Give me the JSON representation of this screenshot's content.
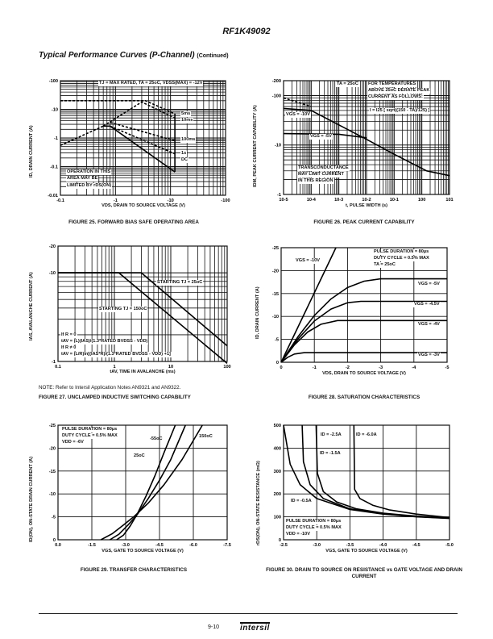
{
  "header": {
    "part_number": "RF1K49092"
  },
  "section": {
    "title": "Typical Performance Curves (P-Channel)",
    "suffix": "(Continued)"
  },
  "note": "NOTE:  Refer to Intersil Application Notes AN9321 and AN9322.",
  "footer": {
    "page": "9-10",
    "logo": "intersil"
  },
  "chart_data": [
    {
      "type": "line",
      "title": "FIGURE 25.  FORWARD BIAS SAFE OPERATING AREA",
      "xlabel": "VDS, DRAIN TO SOURCE VOLTAGE (V)",
      "ylabel": "ID, DRAIN CURRENT (A)",
      "xscale": "log",
      "yscale": "log",
      "xlim": [
        -0.1,
        -100
      ],
      "ylim": [
        -0.01,
        -100
      ],
      "xticks": [
        {
          "v": -0.1,
          "label": "-0.1"
        },
        {
          "v": -1,
          "label": "-1"
        },
        {
          "v": -10,
          "label": "-10"
        },
        {
          "v": -100,
          "label": "-100"
        }
      ],
      "yticks": [
        {
          "v": -0.01,
          "label": "-0.01"
        },
        {
          "v": -0.1,
          "label": "-0.1"
        },
        {
          "v": -1,
          "label": "-1"
        },
        {
          "v": -10,
          "label": "-10"
        },
        {
          "v": -100,
          "label": "-100"
        }
      ],
      "annotations": [
        "TJ = MAX RATED, TA = 25oC, VDSS(MAX) = -12V",
        "5ms",
        "10ms",
        "100ms",
        "1s",
        "DC",
        "OPERATION IN THIS",
        "AREA MAY BE",
        "LIMITED BY rDS(ON)"
      ],
      "series": [
        {
          "name": "rDS(ON) limit",
          "style": "dashed",
          "x": [
            -0.1,
            -0.6
          ],
          "y": [
            -0.55,
            -2.6
          ]
        },
        {
          "name": "5ms",
          "style": "dashed",
          "x": [
            -0.1,
            -3.5,
            -12
          ],
          "y": [
            -20,
            -20,
            -7
          ]
        },
        {
          "name": "10ms",
          "style": "dashed",
          "x": [
            -0.6,
            -3,
            -12
          ],
          "y": [
            -2.6,
            -18,
            -5
          ]
        },
        {
          "name": "100ms",
          "style": "dashed",
          "x": [
            -0.8,
            -12
          ],
          "y": [
            -3.5,
            -0.8
          ]
        },
        {
          "name": "1s",
          "style": "dashed",
          "x": [
            -0.8,
            -12
          ],
          "y": [
            -2.6,
            -0.28
          ]
        },
        {
          "name": "DC",
          "style": "solid",
          "x": [
            -0.6,
            -0.8,
            -12
          ],
          "y": [
            -2.6,
            -2.6,
            -0.065
          ]
        },
        {
          "name": "VDSS limit",
          "style": "solid",
          "x": [
            -12,
            -12
          ],
          "y": [
            -0.065,
            -7
          ]
        }
      ]
    },
    {
      "type": "line",
      "title": "FIGURE 26.  PEAK CURRENT CAPABILITY",
      "xlabel": "t, PULSE WIDTH (s)",
      "ylabel": "IDM, PEAK CURRENT CAPABILITY (A)",
      "xscale": "log",
      "yscale": "log",
      "xlim": [
        1e-05,
        10
      ],
      "ylim": [
        -1,
        -200
      ],
      "xticks": [
        {
          "v": 1e-05,
          "label": "10-5"
        },
        {
          "v": 0.0001,
          "label": "10-4"
        },
        {
          "v": 0.001,
          "label": "10-3"
        },
        {
          "v": 0.01,
          "label": "10-2"
        },
        {
          "v": 0.1,
          "label": "10-1"
        },
        {
          "v": 1,
          "label": "100"
        },
        {
          "v": 10,
          "label": "101"
        }
      ],
      "yticks": [
        {
          "v": -1,
          "label": "-1"
        },
        {
          "v": -10,
          "label": "-10"
        },
        {
          "v": -100,
          "label": "-100"
        },
        {
          "v": -200,
          "label": "-200"
        }
      ],
      "annotations": [
        "TA = 25oC",
        "FOR TEMPERATURES",
        "ABOVE 25oC DERATE PEAK",
        "CURRENT AS FOLLOWS:",
        "I = I25 [ sqrt((150 - TA)/125) ]",
        "VGS = -10V",
        "VGS = -5V",
        "TRANSCONDUCTANCE",
        "MAY LIMIT CURRENT",
        "IN THIS REGION"
      ],
      "series": [
        {
          "name": "VGS = -10V",
          "style": "solid",
          "x": [
            1e-05,
            0.0001,
            0.01,
            0.1,
            1.5,
            10
          ],
          "y": [
            -55,
            -50,
            -13,
            -6.5,
            -3,
            -2.4
          ]
        },
        {
          "name": "VGS = -10V limit",
          "style": "dashed",
          "x": [
            1e-05,
            0.0001
          ],
          "y": [
            -90,
            -60
          ]
        },
        {
          "name": "VGS = -5V",
          "style": "solid",
          "x": [
            1e-05,
            0.001,
            0.01
          ],
          "y": [
            -17,
            -16.5,
            -14
          ]
        }
      ]
    },
    {
      "type": "line",
      "title": "FIGURE 27.  UNCLAMPED INDUCTIVE SWITCHING CAPABILITY",
      "xlabel": "tAV, TIME IN AVALANCHE (ms)",
      "ylabel": "IAS, AVALANCHE CURRENT (A)",
      "xscale": "log",
      "yscale": "log",
      "xlim": [
        0.1,
        100
      ],
      "ylim": [
        -1,
        -20
      ],
      "xticks": [
        {
          "v": 0.1,
          "label": "0.1"
        },
        {
          "v": 1,
          "label": "1"
        },
        {
          "v": 10,
          "label": "10"
        },
        {
          "v": 100,
          "label": "100"
        }
      ],
      "yticks": [
        {
          "v": -1,
          "label": "-1"
        },
        {
          "v": -10,
          "label": "-10"
        },
        {
          "v": -20,
          "label": "-20"
        }
      ],
      "annotations": [
        "STARTING TJ = 25oC",
        "STARTING TJ = 150oC",
        "If R = 0",
        "tAV = (L)(IAS)/(1.3*RATED BVDSS - VDD)",
        "If R ≠ 0",
        "tAV = (L/R)ln[(IAS*R)/(1.3*RATED BVDSS - VDD) +1]"
      ],
      "series": [
        {
          "name": "STARTING TJ = 25oC",
          "style": "solid",
          "x": [
            0.1,
            3,
            100
          ],
          "y": [
            -10,
            -10,
            -1.5
          ]
        },
        {
          "name": "STARTING TJ = 150oC",
          "style": "solid",
          "x": [
            0.1,
            1.2,
            100
          ],
          "y": [
            -10,
            -10,
            -0.95
          ]
        }
      ]
    },
    {
      "type": "line",
      "title": "FIGURE 28.  SATURATION CHARACTERISTICS",
      "xlabel": "VDS, DRAIN TO SOURCE VOLTAGE (V)",
      "ylabel": "ID, DRAIN CURRENT (A)",
      "xscale": "linear",
      "yscale": "linear",
      "xlim": [
        0,
        -5
      ],
      "ylim": [
        0,
        -25
      ],
      "xticks": [
        {
          "v": 0,
          "label": "0"
        },
        {
          "v": -1,
          "label": "-1"
        },
        {
          "v": -2,
          "label": "-2"
        },
        {
          "v": -3,
          "label": "-3"
        },
        {
          "v": -4,
          "label": "-4"
        },
        {
          "v": -5,
          "label": "-5"
        }
      ],
      "yticks": [
        {
          "v": 0,
          "label": "0"
        },
        {
          "v": -5,
          "label": "-5"
        },
        {
          "v": -10,
          "label": "-10"
        },
        {
          "v": -15,
          "label": "-15"
        },
        {
          "v": -20,
          "label": "-20"
        },
        {
          "v": -25,
          "label": "-25"
        }
      ],
      "annotations": [
        "PULSE DURATION = 80µs",
        "DUTY CYCLE = 0.5% MAX",
        "TA = 25oC",
        "VGS = -10V",
        "VGS = -5V",
        "VGS = -4.5V",
        "VGS = -4V",
        "VGS = -3V"
      ],
      "series": [
        {
          "name": "VGS = -10V",
          "style": "solid",
          "x": [
            0,
            -1.65
          ],
          "y": [
            0,
            -25
          ]
        },
        {
          "name": "VGS = -5V",
          "style": "solid",
          "x": [
            0,
            -0.5,
            -1,
            -1.5,
            -2,
            -2.5,
            -3,
            -5
          ],
          "y": [
            0,
            -5.5,
            -10.2,
            -13.8,
            -16.3,
            -17.7,
            -18.2,
            -18.2
          ]
        },
        {
          "name": "VGS = -4.5V",
          "style": "solid",
          "x": [
            0,
            -0.5,
            -1,
            -1.5,
            -2,
            -2.4,
            -5
          ],
          "y": [
            0,
            -5,
            -9,
            -11.6,
            -13,
            -13.3,
            -13.3
          ]
        },
        {
          "name": "VGS = -4V",
          "style": "solid",
          "x": [
            0,
            -0.4,
            -0.8,
            -1.2,
            -1.7,
            -5
          ],
          "y": [
            0,
            -3.8,
            -6.6,
            -8.3,
            -9.1,
            -9.1
          ]
        },
        {
          "name": "VGS = -3V",
          "style": "solid",
          "x": [
            0,
            -0.2,
            -0.4,
            -0.7,
            -5
          ],
          "y": [
            0,
            -1.1,
            -1.8,
            -2.1,
            -2.1
          ]
        }
      ]
    },
    {
      "type": "line",
      "title": "FIGURE 29.  TRANSFER CHARACTERISTICS",
      "xlabel": "VGS, GATE TO SOURCE VOLTAGE (V)",
      "ylabel": "ID(ON), ON-STATE DRAIN CURRENT (A)",
      "xscale": "linear",
      "yscale": "linear",
      "xlim": [
        0,
        -7.5
      ],
      "ylim": [
        0,
        -25
      ],
      "xticks": [
        {
          "v": 0,
          "label": "0.0"
        },
        {
          "v": -1.5,
          "label": "-1.5"
        },
        {
          "v": -3,
          "label": "-3.0"
        },
        {
          "v": -4.5,
          "label": "-4.5"
        },
        {
          "v": -6,
          "label": "-6.0"
        },
        {
          "v": -7.5,
          "label": "-7.5"
        }
      ],
      "yticks": [
        {
          "v": 0,
          "label": "0"
        },
        {
          "v": -5,
          "label": "-5"
        },
        {
          "v": -10,
          "label": "-10"
        },
        {
          "v": -15,
          "label": "-15"
        },
        {
          "v": -20,
          "label": "-20"
        },
        {
          "v": -25,
          "label": "-25"
        }
      ],
      "annotations": [
        "PULSE DURATION = 80µs",
        "DUTY CYCLE = 0.5% MAX",
        "VDD = -6V",
        "-55oC",
        "25oC",
        "150oC"
      ],
      "series": [
        {
          "name": "-55oC",
          "style": "solid",
          "x": [
            -2.6,
            -2.9,
            -3.2,
            -3.5,
            -3.9,
            -4.3,
            -4.7,
            -5.2
          ],
          "y": [
            0,
            -1,
            -3,
            -5.5,
            -9.5,
            -14,
            -19,
            -25
          ]
        },
        {
          "name": "25oC",
          "style": "solid",
          "x": [
            -2.3,
            -2.7,
            -3.1,
            -3.5,
            -4,
            -4.5,
            -5,
            -5.65
          ],
          "y": [
            0,
            -1.2,
            -3.2,
            -5.4,
            -9,
            -13,
            -17.5,
            -25
          ]
        },
        {
          "name": "150oC",
          "style": "solid",
          "x": [
            -1.9,
            -2.4,
            -2.9,
            -3.4,
            -4,
            -4.7,
            -5.5,
            -6.4
          ],
          "y": [
            0,
            -1.3,
            -3.2,
            -5.2,
            -8,
            -12,
            -17.5,
            -25
          ]
        }
      ]
    },
    {
      "type": "line",
      "title": "FIGURE 30.  DRAIN TO SOURCE ON RESISTANCE vs GATE VOLTAGE AND DRAIN CURRENT",
      "xlabel": "VGS, GATE TO SOURCE VOLTAGE (V)",
      "ylabel": "rDS(ON), ON-STATE RESISTANCE (mΩ)",
      "xscale": "linear",
      "yscale": "linear",
      "xlim": [
        -2.5,
        -5
      ],
      "ylim": [
        0,
        500
      ],
      "xticks": [
        {
          "v": -2.5,
          "label": "-2.5"
        },
        {
          "v": -3,
          "label": "-3.0"
        },
        {
          "v": -3.5,
          "label": "-3.5"
        },
        {
          "v": -4,
          "label": "-4.0"
        },
        {
          "v": -4.5,
          "label": "-4.5"
        },
        {
          "v": -5,
          "label": "-5.0"
        }
      ],
      "yticks": [
        {
          "v": 0,
          "label": "0"
        },
        {
          "v": 100,
          "label": "100"
        },
        {
          "v": 200,
          "label": "200"
        },
        {
          "v": 300,
          "label": "300"
        },
        {
          "v": 400,
          "label": "400"
        },
        {
          "v": 500,
          "label": "500"
        }
      ],
      "annotations": [
        "ID = -2.5A",
        "ID = -6.0A",
        "ID = -1.5A",
        "ID = -0.5A",
        "PULSE DURATION = 80µs",
        "DUTY CYCLE = 0.5% MAX",
        "VDD = -10V"
      ],
      "series": [
        {
          "name": "ID = -0.5A",
          "style": "solid",
          "x": [
            -2.5,
            -2.6,
            -2.75,
            -3,
            -3.5,
            -4,
            -4.5,
            -5
          ],
          "y": [
            500,
            330,
            240,
            180,
            132,
            112,
            100,
            93
          ]
        },
        {
          "name": "ID = -1.5A",
          "style": "solid",
          "x": [
            -2.78,
            -2.8,
            -2.9,
            -3.1,
            -3.5,
            -4,
            -4.5,
            -5
          ],
          "y": [
            500,
            340,
            240,
            180,
            135,
            113,
            101,
            94
          ]
        },
        {
          "name": "ID = -2.5A",
          "style": "solid",
          "x": [
            -2.99,
            -3.01,
            -3.1,
            -3.3,
            -3.6,
            -4,
            -4.5,
            -5
          ],
          "y": [
            500,
            290,
            210,
            165,
            135,
            116,
            103,
            95
          ]
        },
        {
          "name": "ID = -6.0A",
          "style": "solid",
          "x": [
            -3.56,
            -3.57,
            -3.65,
            -3.85,
            -4.1,
            -4.5,
            -5
          ],
          "y": [
            500,
            220,
            180,
            150,
            130,
            112,
            97
          ]
        }
      ]
    }
  ]
}
